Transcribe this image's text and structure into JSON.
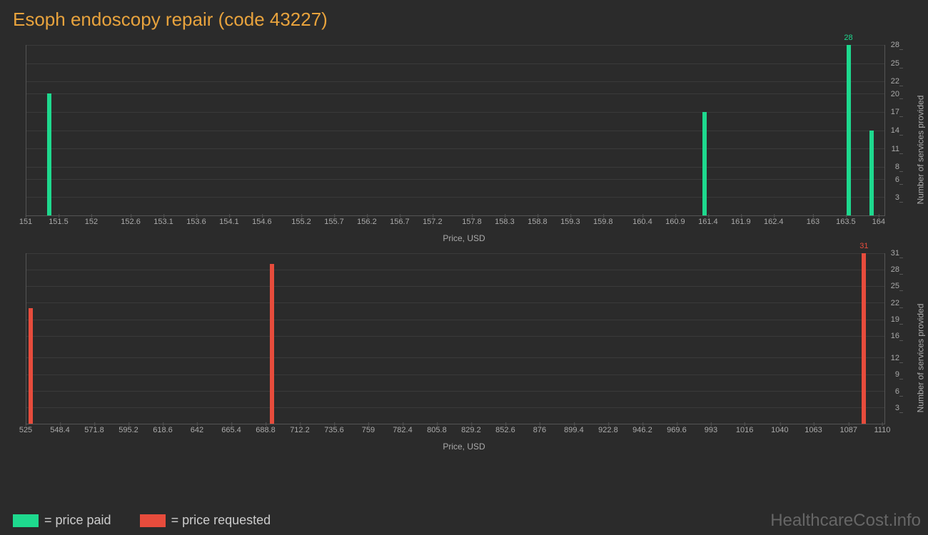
{
  "title": "Esoph endoscopy repair (code 43227)",
  "title_color": "#e8a33d",
  "background_color": "#2b2b2b",
  "axis_color": "#555",
  "grid_color": "#3a3a3a",
  "tick_text_color": "#aaa",
  "chart1": {
    "type": "bar",
    "bar_color": "#1ed98e",
    "x_label": "Price, USD",
    "y_label": "Number of services provided",
    "x_min": 151,
    "x_max": 164.1,
    "x_ticks": [
      151,
      151.5,
      152,
      152.6,
      153.1,
      153.6,
      154.1,
      154.6,
      155.2,
      155.7,
      156.2,
      156.7,
      157.2,
      157.8,
      158.3,
      158.8,
      159.3,
      159.8,
      160.4,
      160.9,
      161.4,
      161.9,
      162.4,
      163,
      163.5,
      164
    ],
    "y_min": 0,
    "y_max": 28,
    "y_ticks": [
      3,
      6,
      8,
      11,
      14,
      17,
      20,
      22,
      25,
      28
    ],
    "bars": [
      {
        "x": 151.35,
        "y": 20,
        "label": null
      },
      {
        "x": 161.35,
        "y": 17,
        "label": null
      },
      {
        "x": 163.55,
        "y": 28,
        "label": "28"
      },
      {
        "x": 163.9,
        "y": 14,
        "label": null
      }
    ]
  },
  "chart2": {
    "type": "bar",
    "bar_color": "#e74c3c",
    "x_label": "Price, USD",
    "y_label": "Number of services provided",
    "x_min": 525,
    "x_max": 1112,
    "x_ticks": [
      525,
      548.4,
      571.8,
      595.2,
      618.6,
      642,
      665.4,
      688.8,
      712.2,
      735.6,
      759,
      782.4,
      805.8,
      829.2,
      852.6,
      876,
      899.4,
      922.8,
      946.2,
      969.6,
      993,
      1016,
      1040,
      1063,
      1087,
      1110
    ],
    "y_min": 0,
    "y_max": 31,
    "y_ticks": [
      3,
      6,
      9,
      12,
      16,
      19,
      22,
      25,
      28,
      31
    ],
    "bars": [
      {
        "x": 528,
        "y": 21,
        "label": null
      },
      {
        "x": 693,
        "y": 29,
        "label": null
      },
      {
        "x": 1098,
        "y": 31,
        "label": "31"
      }
    ]
  },
  "legend": [
    {
      "color": "#1ed98e",
      "label": "= price paid"
    },
    {
      "color": "#e74c3c",
      "label": "= price requested"
    }
  ],
  "watermark": "HealthcareCost.info"
}
